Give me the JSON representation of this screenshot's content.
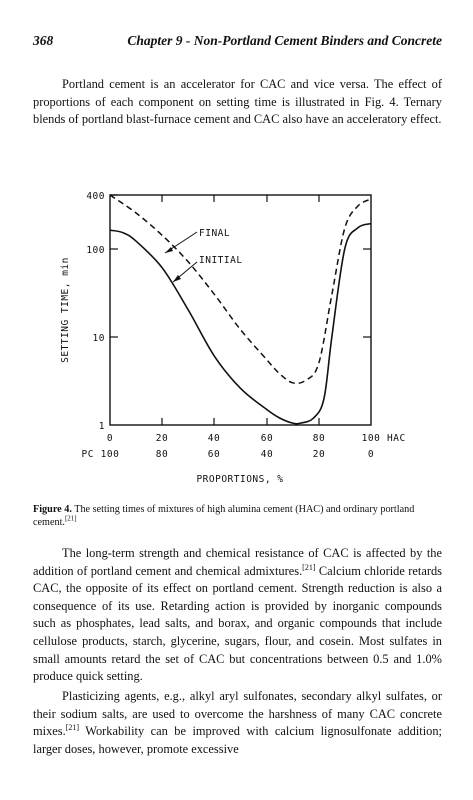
{
  "page": {
    "number": "368",
    "running_title": "Chapter 9 - Non-Portland Cement Binders and Concrete"
  },
  "paragraphs": {
    "p1": "Portland cement is an accelerator for CAC and vice versa. The effect of proportions of each component on setting time is illustrated in Fig. 4. Ternary blends of portland blast-furnace cement and CAC also have an acceleratory effect.",
    "p2a": "The long-term strength and chemical resistance of CAC is affected by the addition of portland cement and chemical admixtures.",
    "p2_ref": "[21]",
    "p2b": " Calcium chloride retards CAC, the opposite of its effect on portland cement. Strength reduction is also a consequence of its use. Retarding action is provided by inorganic compounds such as phosphates, lead salts, and borax, and organic compounds that include cellulose products, starch, glycerine, sugars, flour, and cosein. Most sulfates in small amounts retard the set of CAC but concentrations between 0.5 and 1.0% produce quick setting.",
    "p3a": "Plasticizing agents, e.g., alkyl aryl sulfonates, secondary alkyl sulfates, or their sodium salts, are used to overcome the harshness of many CAC concrete mixes.",
    "p3_ref": "[21]",
    "p3b": " Workability can be improved with calcium lignosulfonate addition; larger doses, however, promote excessive"
  },
  "caption": {
    "label": "Figure 4.",
    "text": " The setting times of mixtures of high alumina cement (HAC) and ordinary portland cement.",
    "ref": "[21]"
  },
  "chart_data": {
    "type": "line",
    "title": "",
    "xlabel": "PROPORTIONS, %",
    "ylabel": "SETTING TIME, min",
    "y_scale": "log",
    "ylim": [
      1,
      400
    ],
    "xlim": [
      0,
      100
    ],
    "y_ticks": [
      "1",
      "10",
      "100",
      "400"
    ],
    "x_ticks_hac": [
      "0",
      "20",
      "40",
      "60",
      "80",
      "100"
    ],
    "x_ticks_pc": [
      "100",
      "80",
      "60",
      "40",
      "20",
      "0"
    ],
    "x_row_label_hac": "HAC",
    "x_row_label_pc": "PC",
    "series": [
      {
        "name": "FINAL",
        "style": "dashed",
        "x": [
          0,
          10,
          20,
          30,
          40,
          50,
          60,
          65,
          70,
          75,
          80,
          85,
          90,
          95,
          100
        ],
        "y": [
          400,
          250,
          140,
          70,
          30,
          12,
          5.5,
          3.8,
          3.0,
          3.2,
          5,
          30,
          170,
          300,
          360
        ]
      },
      {
        "name": "INITIAL",
        "style": "solid",
        "x": [
          0,
          5,
          10,
          20,
          30,
          40,
          50,
          60,
          65,
          70,
          73,
          78,
          82,
          85,
          90,
          95,
          100
        ],
        "y": [
          160,
          150,
          120,
          60,
          20,
          6,
          2.6,
          1.5,
          1.2,
          1.05,
          1.05,
          1.2,
          2,
          10,
          100,
          170,
          190
        ]
      }
    ],
    "annotations": [
      "FINAL",
      "INITIAL"
    ]
  }
}
